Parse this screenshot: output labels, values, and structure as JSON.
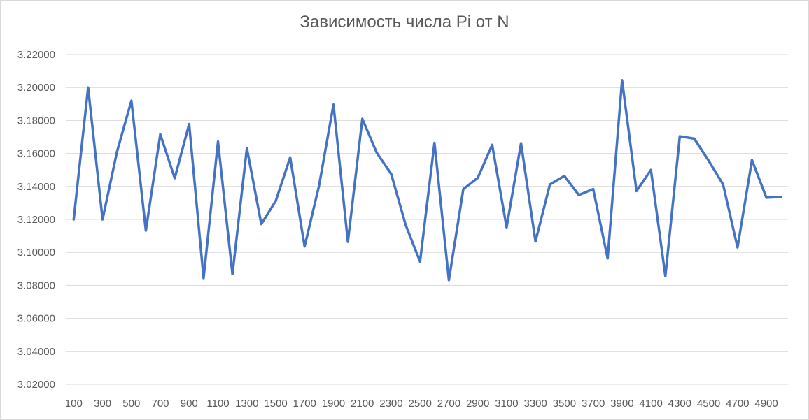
{
  "chart_data": {
    "type": "line",
    "title": "Зависимость числа Pi от N",
    "xlabel": "",
    "ylabel": "",
    "ylim": [
      3.02,
      3.22
    ],
    "y_ticks": [
      "3.02000",
      "3.04000",
      "3.06000",
      "3.08000",
      "3.10000",
      "3.12000",
      "3.14000",
      "3.16000",
      "3.18000",
      "3.20000",
      "3.22000"
    ],
    "x_tick_labels": [
      "100",
      "300",
      "500",
      "700",
      "900",
      "1100",
      "1300",
      "1500",
      "1700",
      "1900",
      "2100",
      "2300",
      "2500",
      "2700",
      "2900",
      "3100",
      "3300",
      "3500",
      "3700",
      "3900",
      "4100",
      "4300",
      "4500",
      "4700",
      "4900"
    ],
    "grid": true,
    "legend": "none",
    "line_color": "#4472c4",
    "x": [
      100,
      200,
      300,
      400,
      500,
      600,
      700,
      800,
      900,
      1000,
      1100,
      1200,
      1300,
      1400,
      1500,
      1600,
      1700,
      1800,
      1900,
      2000,
      2100,
      2200,
      2300,
      2400,
      2500,
      2600,
      2700,
      2800,
      2900,
      3000,
      3100,
      3200,
      3300,
      3400,
      3500,
      3600,
      3700,
      3800,
      3900,
      4000,
      4100,
      4200,
      4300,
      4400,
      4500,
      4600,
      4700,
      4800,
      4900,
      5000
    ],
    "series": [
      {
        "values": [
          3.12,
          3.2,
          3.12,
          3.161,
          3.192,
          3.1132,
          3.1716,
          3.145,
          3.1778,
          3.0844,
          3.1672,
          3.0868,
          3.1632,
          3.1172,
          3.1312,
          3.1576,
          3.1036,
          3.1404,
          3.1896,
          3.1064,
          3.181,
          3.1604,
          3.1476,
          3.1168,
          3.0944,
          3.1664,
          3.0832,
          3.1384,
          3.1452,
          3.1652,
          3.1152,
          3.1662,
          3.1066,
          3.1412,
          3.1464,
          3.1348,
          3.1384,
          3.0964,
          3.2044,
          3.1372,
          3.15,
          3.0856,
          3.1704,
          3.169,
          3.1556,
          3.1412,
          3.103,
          3.156,
          3.1332,
          3.1336
        ]
      }
    ]
  }
}
